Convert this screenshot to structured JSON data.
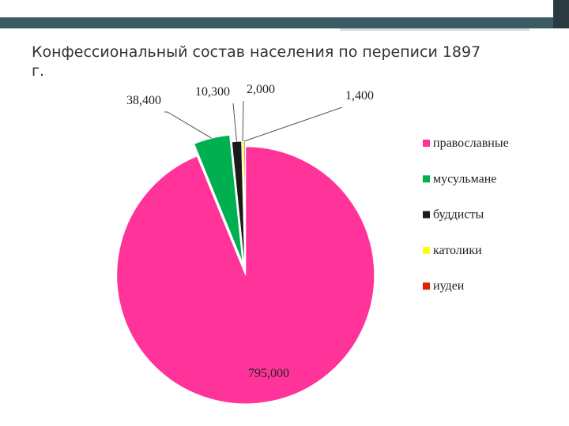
{
  "chart_data": {
    "type": "pie",
    "title": "Конфессиональный состав населения по переписи 1897 г.",
    "categories": [
      "православные",
      "мусульмане",
      "буддисты",
      "католики",
      "иудеи"
    ],
    "values": [
      795000,
      38400,
      10300,
      2000,
      1400
    ],
    "value_labels": [
      "795,000",
      "38,400",
      "10,300",
      "2,000",
      "1,400"
    ],
    "colors": [
      "#ff3399",
      "#00b050",
      "#1a1a1a",
      "#ffff00",
      "#e02000"
    ],
    "legend": "right"
  }
}
